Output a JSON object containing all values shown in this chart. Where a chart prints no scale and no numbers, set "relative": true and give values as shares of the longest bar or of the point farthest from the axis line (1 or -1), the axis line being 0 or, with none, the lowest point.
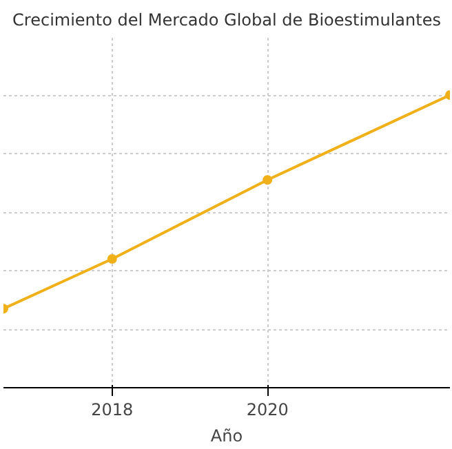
{
  "chart_data": {
    "type": "line",
    "title": "Crecimiento del Mercado Global de Bioestimulantes",
    "xlabel": "Año",
    "x": [
      2016.6,
      2018,
      2020,
      2022.35
    ],
    "series": [
      {
        "color": "#f0b01a",
        "values": [
          0.27,
          0.44,
          0.71,
          1.0
        ]
      }
    ],
    "relative": true,
    "xlim": [
      2016.6,
      2022.35
    ],
    "xticks": [
      2018,
      2020
    ],
    "grid": true,
    "marker": "circle",
    "line_style": "solid"
  }
}
